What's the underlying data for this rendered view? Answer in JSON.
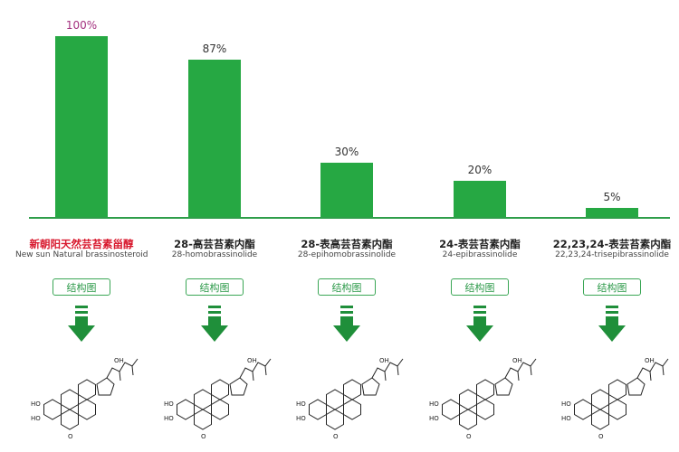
{
  "chart_data": {
    "type": "bar",
    "categories": [
      "新朝阳天然芸苔素甾醇",
      "28-高芸苔素内酯",
      "28-表高芸苔素内酯",
      "24-表芸苔素内酯",
      "22,23,24-表芸苔素内酯"
    ],
    "subtitles": [
      "New sun Natural brassinosteroid",
      "28-homobrassinolide",
      "28-epihomobrassinolide",
      "24-epibrassinolide",
      "22,23,24-trisepibrassinolide"
    ],
    "values": [
      100,
      87,
      30,
      20,
      5
    ],
    "value_labels": [
      "100%",
      "87%",
      "30%",
      "20%",
      "5%"
    ],
    "ylim": [
      0,
      100
    ],
    "grid": false,
    "colors": {
      "bar": "#26a843",
      "baseline": "#2f9e4a",
      "highlight_label": "#a3307e",
      "highlight_name": "#d8182d",
      "arrow": "#1f8f3a"
    }
  },
  "structure_button_label": "结构图",
  "structure_atoms": {
    "hydroxyl_left": "HO",
    "hydroxyl_right": "OH",
    "oxygen": "O"
  }
}
